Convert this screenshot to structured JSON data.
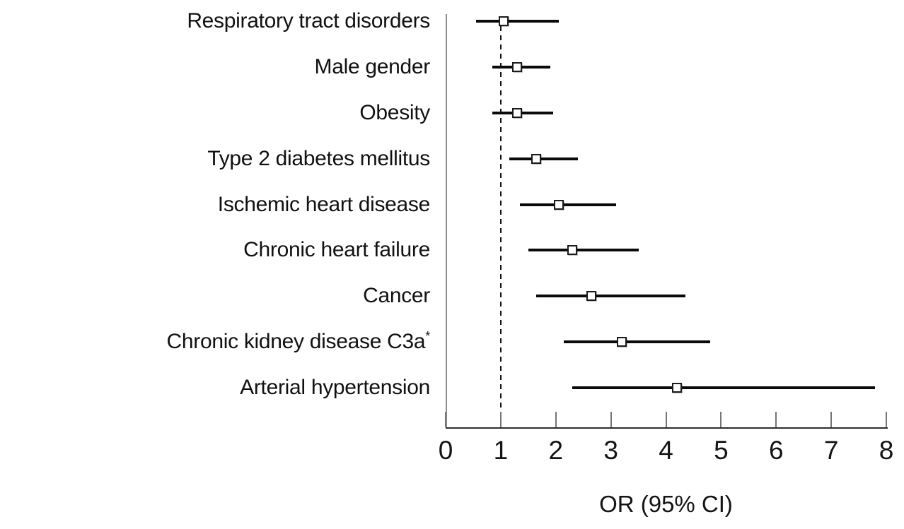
{
  "chart_data": {
    "type": "scatter",
    "subtype": "forest-plot",
    "title": "",
    "xlabel": "OR (95% CI)",
    "ylabel": "",
    "xlim": [
      0,
      8
    ],
    "x_ticks": [
      "0",
      "1",
      "2",
      "3",
      "4",
      "5",
      "6",
      "7",
      "8"
    ],
    "reference_line_x": 1,
    "grid": false,
    "legend": false,
    "marker_shape": "open-square",
    "rows": [
      {
        "label": "Respiratory tract disorders",
        "sup": "",
        "or": 1.05,
        "ci_low": 0.55,
        "ci_high": 2.05
      },
      {
        "label": "Male gender",
        "sup": "",
        "or": 1.3,
        "ci_low": 0.85,
        "ci_high": 1.9
      },
      {
        "label": "Obesity",
        "sup": "",
        "or": 1.3,
        "ci_low": 0.85,
        "ci_high": 1.95
      },
      {
        "label": "Type 2 diabetes mellitus",
        "sup": "",
        "or": 1.65,
        "ci_low": 1.15,
        "ci_high": 2.4
      },
      {
        "label": "Ischemic heart disease",
        "sup": "",
        "or": 2.05,
        "ci_low": 1.35,
        "ci_high": 3.1
      },
      {
        "label": "Chronic heart failure",
        "sup": "",
        "or": 2.3,
        "ci_low": 1.5,
        "ci_high": 3.5
      },
      {
        "label": "Cancer",
        "sup": "",
        "or": 2.65,
        "ci_low": 1.65,
        "ci_high": 4.35
      },
      {
        "label": "Chronic kidney disease C3a",
        "sup": "*",
        "or": 3.2,
        "ci_low": 2.15,
        "ci_high": 4.8
      },
      {
        "label": "Arterial hypertension",
        "sup": "",
        "or": 4.2,
        "ci_low": 2.3,
        "ci_high": 7.8
      }
    ]
  },
  "colors": {
    "background": "#ffffff",
    "ci_line": "#0a0a0a",
    "marker_fill": "#ffffff",
    "marker_border": "#1b1b1b",
    "y_axis": "#8e8e8e",
    "x_axis": "#2e2e2e",
    "tick": "#767676",
    "reference_line": "#111111",
    "text": "#111111"
  }
}
